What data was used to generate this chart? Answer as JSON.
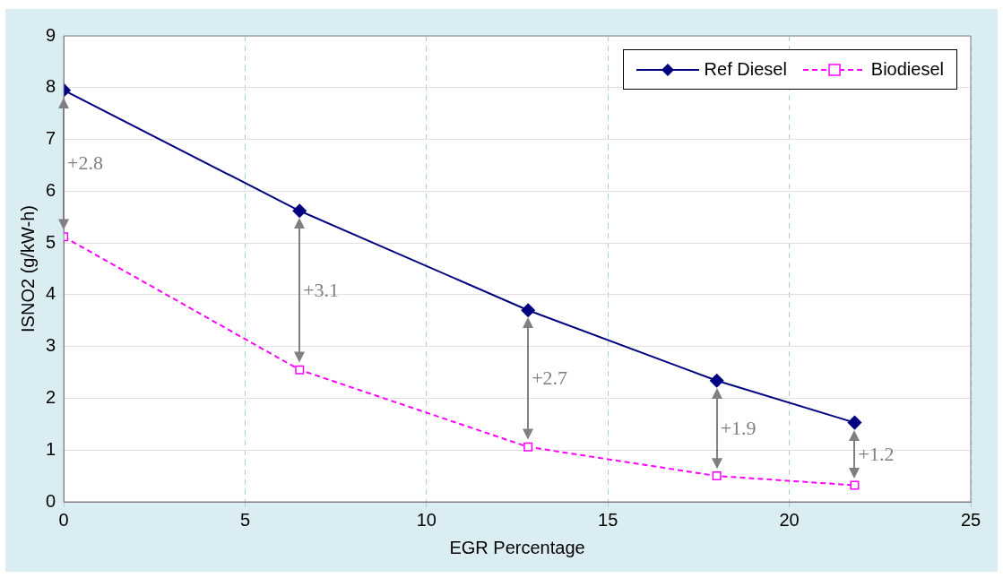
{
  "chart_data": {
    "type": "line",
    "xlabel": "EGR Percentage",
    "ylabel": "ISNO2 (g/kW-h)",
    "x": [
      0,
      6.5,
      12.8,
      18,
      21.8
    ],
    "series": [
      {
        "name": "Ref Diesel",
        "color": "#000080",
        "values": [
          7.95,
          5.62,
          3.7,
          2.34,
          1.53
        ],
        "marker": "diamond",
        "line_style": "solid"
      },
      {
        "name": "Biodiesel",
        "color": "#ff00ff",
        "values": [
          5.12,
          2.55,
          1.06,
          0.5,
          0.32
        ],
        "marker": "square",
        "line_style": "dashed"
      }
    ],
    "xlim": [
      0,
      25
    ],
    "xticks": [
      0,
      5,
      10,
      15,
      20,
      25
    ],
    "ylim": [
      0,
      9
    ],
    "yticks": [
      0,
      1,
      2,
      3,
      4,
      5,
      6,
      7,
      8,
      9
    ],
    "grid": true,
    "legend": "top right",
    "annotations": [
      "+2.8",
      "+3.1",
      "+2.7",
      "+1.9",
      "+1.2"
    ]
  }
}
